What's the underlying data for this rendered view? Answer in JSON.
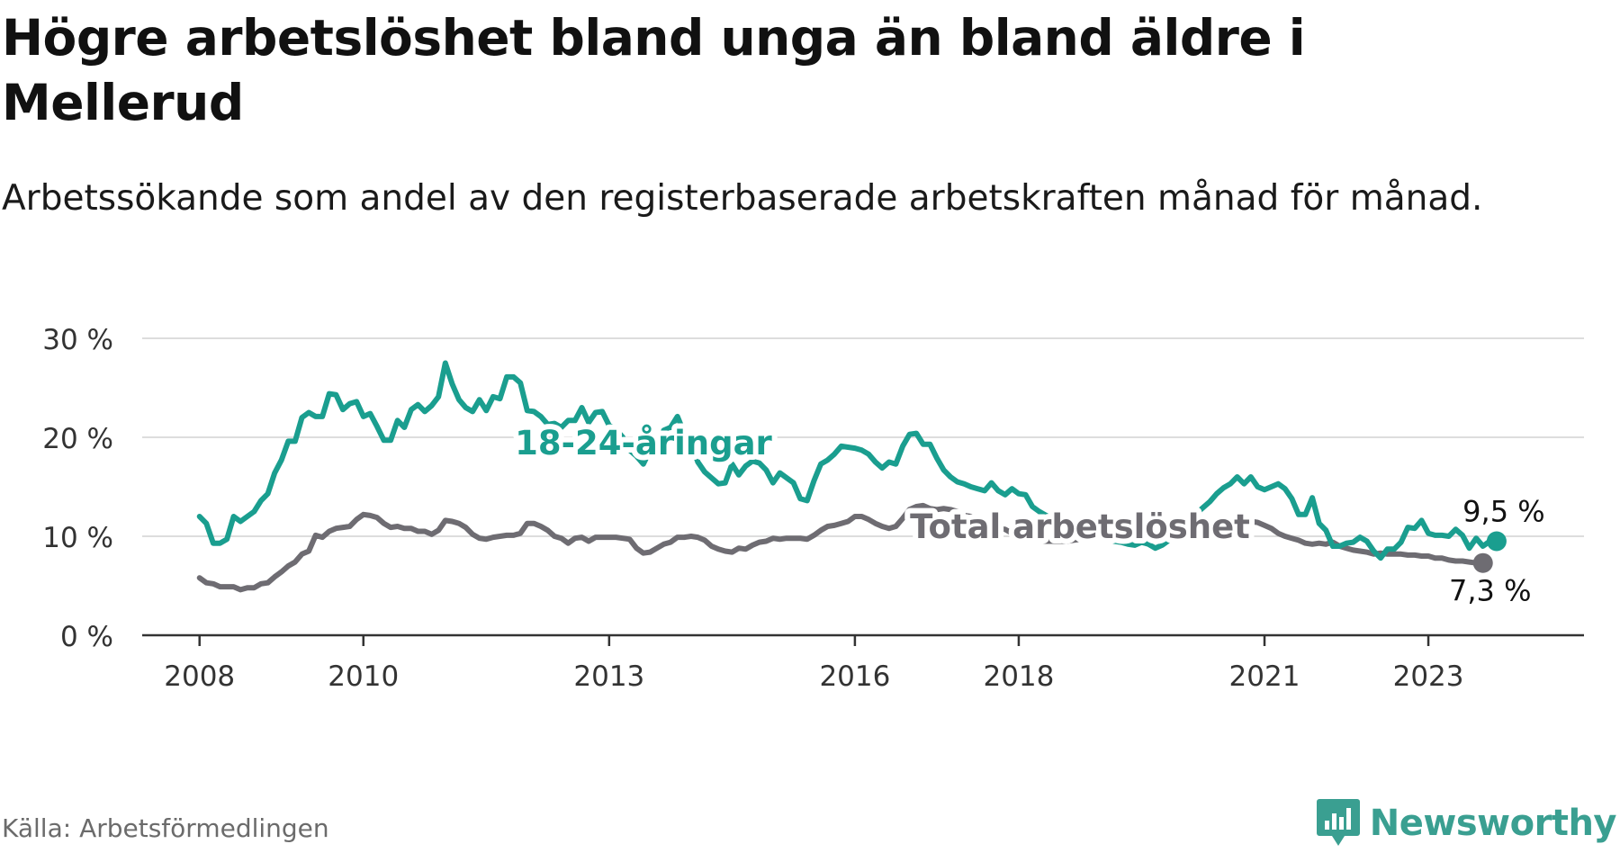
{
  "title": "Högre arbetslöshet bland unga än bland äldre i Mellerud",
  "subtitle": "Arbetssökande som andel av den registerbaserade arbetskraften månad för månad.",
  "source": "Källa: Arbetsförmedlingen",
  "brand": {
    "name": "Newsworthy",
    "icon": "newsworthy-logo-icon"
  },
  "colors": {
    "young": "#1a9e8f",
    "total": "#6e6c72",
    "grid": "#dddddd",
    "axis": "#333333"
  },
  "chart_data": {
    "type": "line",
    "title": "Högre arbetslöshet bland unga än bland äldre i Mellerud",
    "xlabel": "",
    "ylabel": "",
    "ylim": [
      0,
      30
    ],
    "xlim": [
      2007.3,
      2024.9
    ],
    "grid": true,
    "y_ticks": [
      {
        "value": 0,
        "label": "0 %"
      },
      {
        "value": 10,
        "label": "10 %"
      },
      {
        "value": 20,
        "label": "20 %"
      },
      {
        "value": 30,
        "label": "30 %"
      }
    ],
    "x_ticks": [
      {
        "value": 2008,
        "label": "2008"
      },
      {
        "value": 2010,
        "label": "2010"
      },
      {
        "value": 2013,
        "label": "2013"
      },
      {
        "value": 2016,
        "label": "2016"
      },
      {
        "value": 2018,
        "label": "2018"
      },
      {
        "value": 2021,
        "label": "2021"
      },
      {
        "value": 2023,
        "label": "2023"
      }
    ],
    "series": [
      {
        "name": "18-24-åringar",
        "label": "18-24-åringar",
        "end_label": "9,5 %",
        "color": "#1a9e8f",
        "x_start": 2008.0,
        "x_step": 0.0833333,
        "values": [
          12.0,
          11.3,
          9.3,
          9.3,
          9.7,
          12.0,
          11.5,
          12.0,
          12.5,
          13.6,
          14.3,
          16.4,
          17.7,
          19.6,
          19.6,
          22.0,
          22.5,
          22.1,
          22.1,
          24.4,
          24.3,
          22.8,
          23.4,
          23.6,
          22.1,
          22.4,
          21.1,
          19.7,
          19.7,
          21.7,
          21.0,
          22.8,
          23.3,
          22.6,
          23.2,
          24.1,
          27.5,
          25.4,
          23.8,
          23.0,
          22.6,
          23.8,
          22.7,
          24.1,
          23.9,
          26.1,
          26.1,
          25.5,
          22.7,
          22.6,
          22.1,
          21.3,
          21.4,
          21.0,
          21.7,
          21.7,
          23.0,
          21.5,
          22.5,
          22.6,
          21.2,
          20.8,
          20.0,
          18.7,
          18.1,
          17.3,
          18.7,
          18.5,
          20.7,
          21.0,
          22.1,
          20.4,
          19.4,
          17.5,
          16.5,
          15.9,
          15.3,
          15.4,
          17.3,
          16.2,
          17.1,
          17.6,
          17.4,
          16.7,
          15.4,
          16.4,
          15.9,
          15.4,
          13.8,
          13.6,
          15.6,
          17.3,
          17.7,
          18.3,
          19.1,
          19.0,
          18.9,
          18.7,
          18.3,
          17.5,
          16.9,
          17.5,
          17.3,
          19.1,
          20.3,
          20.4,
          19.3,
          19.3,
          17.9,
          16.7,
          16.0,
          15.5,
          15.3,
          15.0,
          14.8,
          14.6,
          15.4,
          14.6,
          14.2,
          14.8,
          14.3,
          14.2,
          13.0,
          12.5,
          12.1,
          11.7,
          11.4,
          11.0,
          10.8,
          10.5,
          10.3,
          10.1,
          9.9,
          9.7,
          9.5,
          9.4,
          9.2,
          9.1,
          9.4,
          9.2,
          8.8,
          9.1,
          9.6,
          10.3,
          11.0,
          11.6,
          12.3,
          12.9,
          13.5,
          14.3,
          14.9,
          15.3,
          16.0,
          15.3,
          16.0,
          15.0,
          14.7,
          15.0,
          15.3,
          14.8,
          13.8,
          12.2,
          12.2,
          13.9,
          11.3,
          10.6,
          9.0,
          9.0,
          9.3,
          9.4,
          9.9,
          9.5,
          8.5,
          7.8,
          8.7,
          8.7,
          9.4,
          10.9,
          10.8,
          11.6,
          10.3,
          10.1,
          10.1,
          10.0,
          10.7,
          10.1,
          8.8,
          9.8,
          9.0,
          9.5,
          9.5
        ]
      },
      {
        "name": "Total arbetslöshet",
        "label": "Total arbetslöshet",
        "end_label": "7,3 %",
        "color": "#6e6c72",
        "x_start": 2008.0,
        "x_step": 0.0833333,
        "values": [
          5.8,
          5.3,
          5.2,
          4.9,
          4.9,
          4.9,
          4.6,
          4.8,
          4.8,
          5.2,
          5.3,
          5.9,
          6.4,
          7.0,
          7.4,
          8.2,
          8.5,
          10.1,
          9.9,
          10.5,
          10.8,
          10.9,
          11.0,
          11.7,
          12.2,
          12.1,
          11.9,
          11.3,
          10.9,
          11.0,
          10.8,
          10.8,
          10.5,
          10.5,
          10.2,
          10.6,
          11.6,
          11.5,
          11.3,
          10.9,
          10.2,
          9.8,
          9.7,
          9.9,
          10.0,
          10.1,
          10.1,
          10.3,
          11.3,
          11.3,
          11.0,
          10.6,
          10.0,
          9.8,
          9.3,
          9.8,
          9.9,
          9.5,
          9.9,
          9.9,
          9.9,
          9.9,
          9.8,
          9.7,
          8.8,
          8.3,
          8.4,
          8.8,
          9.2,
          9.4,
          9.9,
          9.9,
          10.0,
          9.9,
          9.6,
          9.0,
          8.7,
          8.5,
          8.4,
          8.8,
          8.7,
          9.1,
          9.4,
          9.5,
          9.8,
          9.7,
          9.8,
          9.8,
          9.8,
          9.7,
          10.1,
          10.6,
          11.0,
          11.1,
          11.3,
          11.5,
          12.0,
          12.0,
          11.7,
          11.3,
          11.0,
          10.8,
          11.0,
          11.8,
          12.7,
          13.0,
          13.1,
          12.8,
          12.7,
          12.8,
          12.7,
          12.5,
          12.1,
          12.0,
          11.7,
          11.3,
          11.1,
          10.8,
          10.7,
          10.3,
          10.0,
          9.8,
          9.7,
          9.6,
          9.5,
          9.5,
          9.5,
          9.5,
          9.6,
          9.7,
          9.9,
          10.1,
          10.3,
          10.5,
          10.7,
          10.9,
          11.0,
          11.1,
          11.2,
          11.3,
          11.4,
          11.4,
          11.4,
          11.3,
          11.4,
          11.4,
          11.3,
          11.2,
          11.3,
          11.3,
          11.1,
          11.3,
          11.4,
          11.4,
          11.5,
          11.4,
          11.1,
          10.8,
          10.3,
          10.0,
          9.8,
          9.6,
          9.3,
          9.2,
          9.3,
          9.2,
          9.4,
          9.0,
          8.8,
          8.6,
          8.5,
          8.4,
          8.2,
          8.3,
          8.2,
          8.2,
          8.2,
          8.1,
          8.1,
          8.0,
          8.0,
          7.8,
          7.8,
          7.6,
          7.5,
          7.5,
          7.4,
          7.3,
          7.3
        ]
      }
    ]
  }
}
